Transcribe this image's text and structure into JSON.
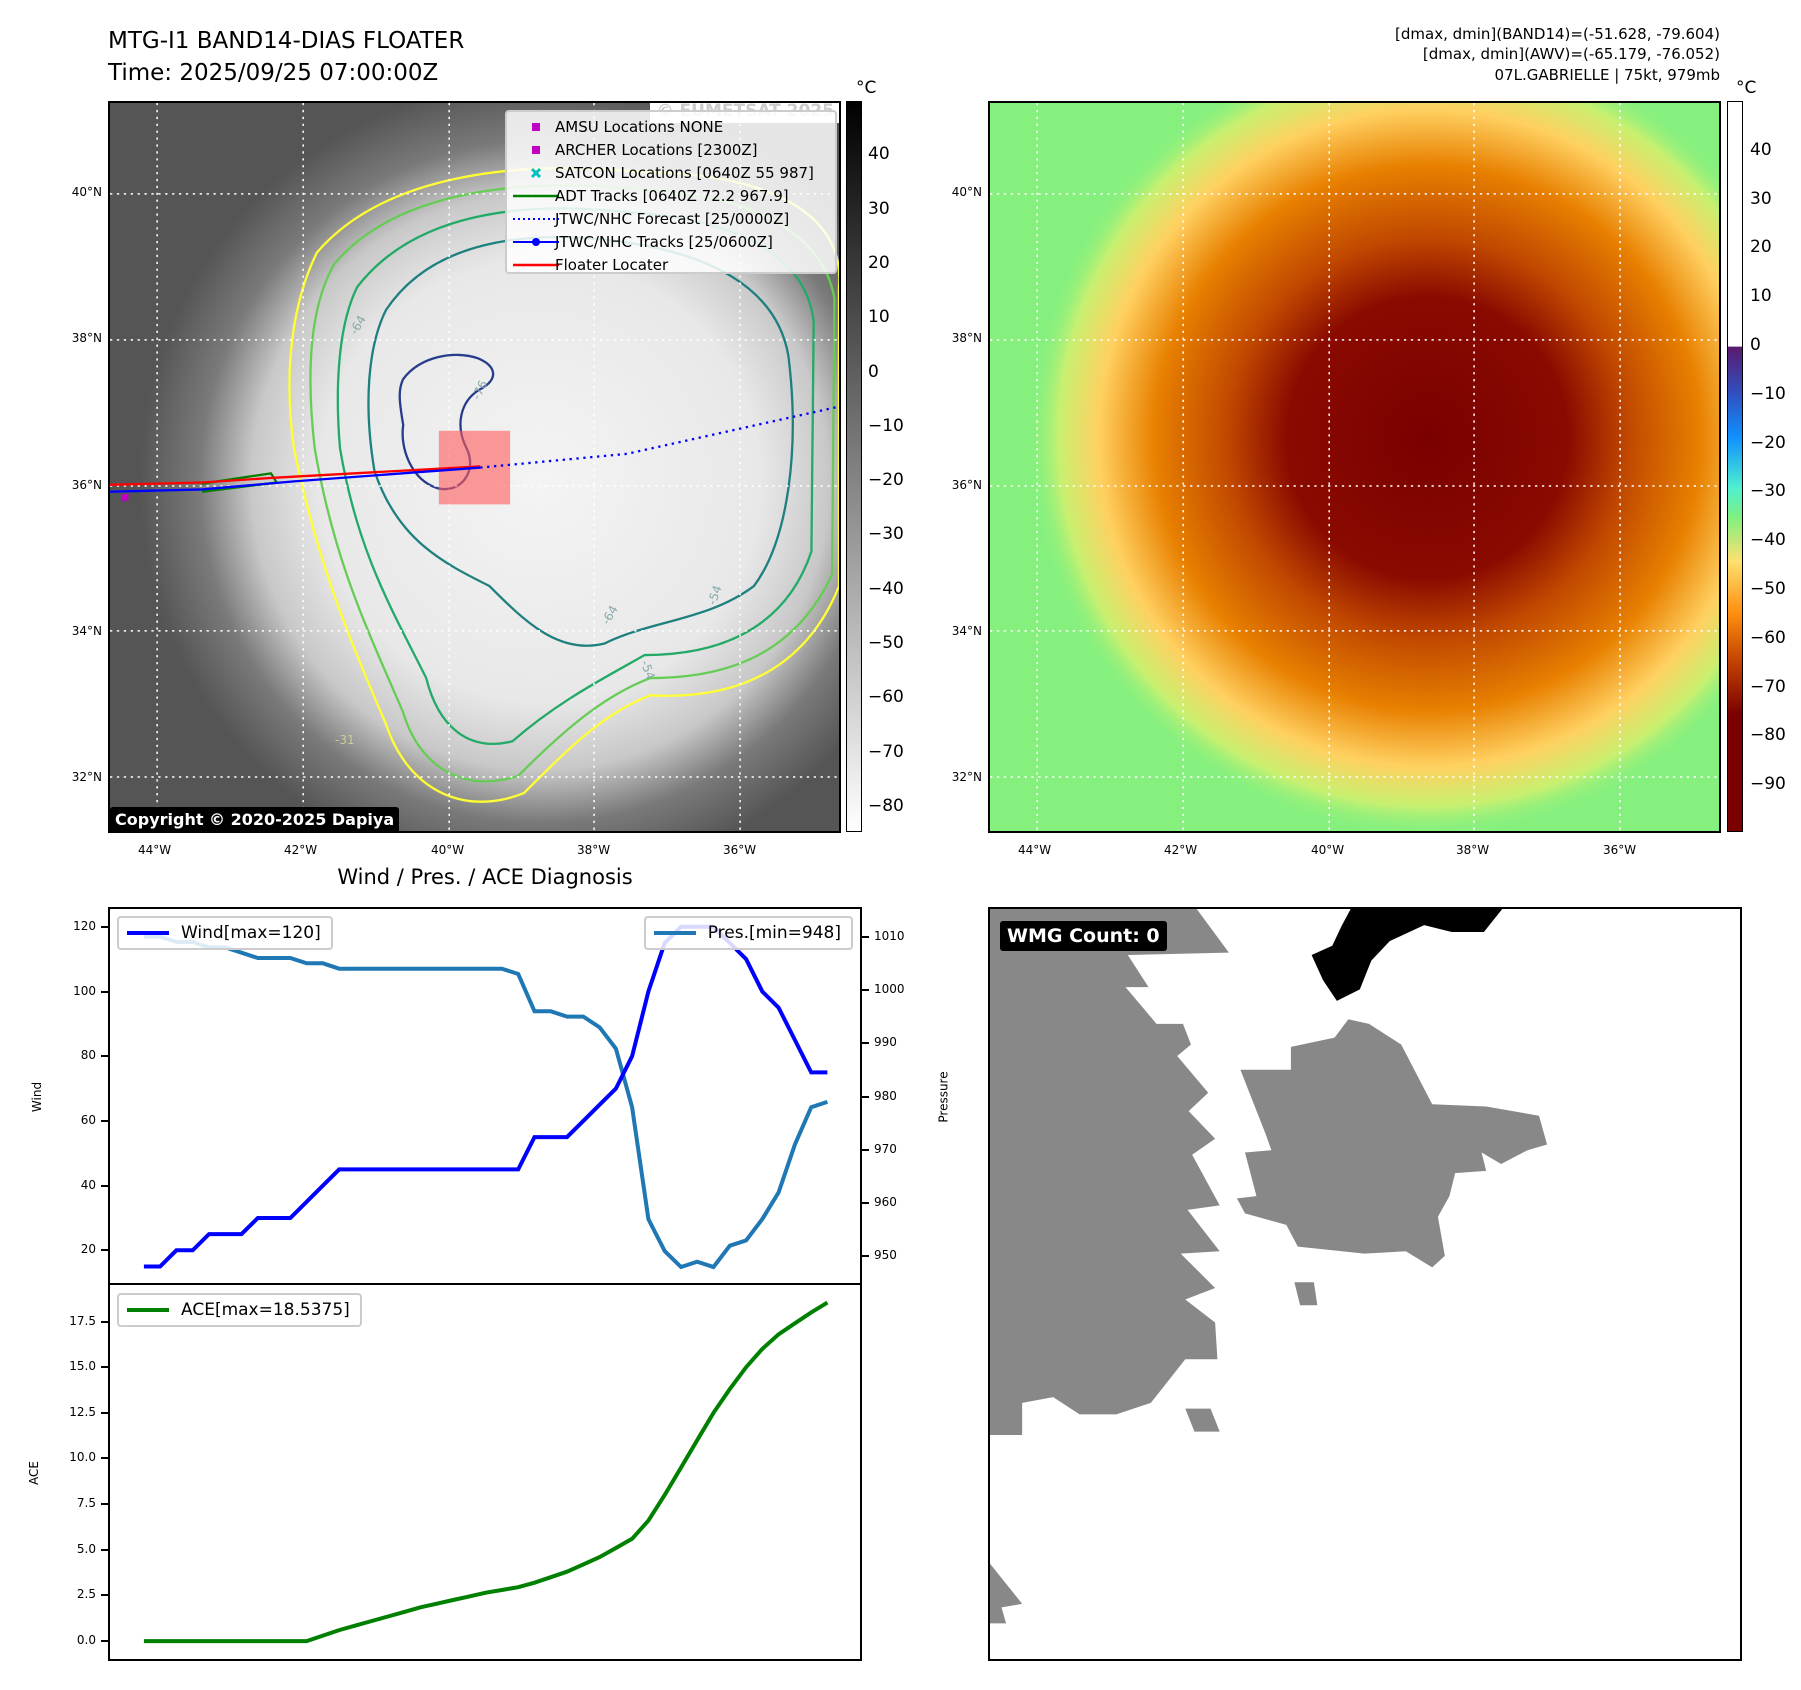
{
  "header": {
    "title": "MTG-I1 BAND14-DIAS FLOATER",
    "time": "Time: 2025/09/25 07:00:00Z",
    "stats": [
      "[dmax, dmin](BAND14)=(-51.628, -79.604)",
      "[dmax, dmin](AWV)=(-65.179, -76.052)",
      "07L.GABRIELLE | 75kt, 979mb"
    ]
  },
  "maps": {
    "lat_labels": [
      "40°N",
      "38°N",
      "36°N",
      "34°N",
      "32°N"
    ],
    "lon_labels": [
      "44°W",
      "42°W",
      "40°W",
      "38°W",
      "36°W"
    ],
    "contour_labels": [
      "-64",
      "-76",
      "-54",
      "-64",
      "-31",
      "-54"
    ],
    "watermark": "© EUMETSAT 2025",
    "copyright": "Copyright © 2020-2025 Dapiya",
    "legend": [
      {
        "label": "AMSU Locations NONE",
        "marker": "square",
        "color": "#c000c0"
      },
      {
        "label": "ARCHER Locations [2300Z]",
        "marker": "square",
        "color": "#c000c0"
      },
      {
        "label": "SATCON Locations [0640Z 55 987]",
        "marker": "x",
        "color": "#00c0c0"
      },
      {
        "label": "ADT Tracks [0640Z 72.2 967.9]",
        "marker": "line",
        "color": "#008000"
      },
      {
        "label": "JTWC/NHC Forecast [25/0000Z]",
        "marker": "dotted",
        "color": "#0000ff"
      },
      {
        "label": "JTWC/NHC Tracks [25/0600Z]",
        "marker": "line-dot",
        "color": "#0000ff"
      },
      {
        "label": "Floater Locater",
        "marker": "line",
        "color": "#ff0000"
      }
    ],
    "colorbar_left": {
      "unit": "°C",
      "ticks": [
        "40",
        "30",
        "20",
        "10",
        "0",
        "−10",
        "−20",
        "−30",
        "−40",
        "−50",
        "−60",
        "−70",
        "−80"
      ],
      "values": [
        40,
        30,
        20,
        10,
        0,
        -10,
        -20,
        -30,
        -40,
        -50,
        -60,
        -70,
        -80
      ],
      "range": [
        -84.6,
        50
      ]
    },
    "colorbar_right": {
      "unit": "°C",
      "ticks": [
        "40",
        "30",
        "20",
        "10",
        "0",
        "−10",
        "−20",
        "−30",
        "−40",
        "−50",
        "−60",
        "−70",
        "−80",
        "−90"
      ],
      "values": [
        40,
        30,
        20,
        10,
        0,
        -10,
        -20,
        -30,
        -40,
        -50,
        -60,
        -70,
        -80,
        -90
      ],
      "range": [
        -99.6,
        50.2
      ]
    }
  },
  "chart_data": [
    {
      "type": "line",
      "title": "Wind / Pres. / ACE Diagnosis",
      "xlabel": "",
      "ylabel": "Wind",
      "y2label": "Pressure",
      "x": [
        0,
        1,
        2,
        3,
        4,
        5,
        6,
        7,
        8,
        9,
        10,
        11,
        12,
        13,
        14,
        15,
        16,
        17,
        18,
        19,
        20,
        21,
        22,
        23,
        24,
        25,
        26,
        27,
        28,
        29,
        30,
        31,
        32,
        33,
        34,
        35,
        36,
        37,
        38,
        39,
        40,
        41,
        42
      ],
      "xlim": [
        -2.08,
        44.0
      ],
      "ylim": [
        9.9,
        125.5
      ],
      "y2lim": [
        945.0,
        1015.2
      ],
      "yticks": [
        20,
        40,
        60,
        80,
        100,
        120
      ],
      "y2ticks": [
        950,
        960,
        970,
        980,
        990,
        1000,
        1010
      ],
      "legend_placement": [
        "upper-left",
        "upper-right"
      ],
      "series": [
        {
          "name": "Wind[max=120]",
          "axis": "left",
          "color": "#0000ff",
          "values": [
            15,
            15,
            20,
            20,
            25,
            25,
            25,
            30,
            30,
            30,
            35,
            40,
            45,
            45,
            45,
            45,
            45,
            45,
            45,
            45,
            45,
            45,
            45,
            45,
            55,
            55,
            55,
            60,
            65,
            70,
            80,
            100,
            115,
            120,
            120,
            120,
            115,
            110,
            100,
            95,
            85,
            75,
            75
          ]
        },
        {
          "name": "Pres.[min=948]",
          "axis": "right",
          "color": "#1f77b4",
          "values": [
            1010,
            1010,
            1009,
            1009,
            1008,
            1008,
            1007,
            1006,
            1006,
            1006,
            1005,
            1005,
            1004,
            1004,
            1004,
            1004,
            1004,
            1004,
            1004,
            1004,
            1004,
            1004,
            1004,
            1003,
            996,
            996,
            995,
            995,
            993,
            989,
            978,
            957,
            951,
            948,
            949,
            948,
            952,
            953,
            957,
            962,
            971,
            978,
            979
          ]
        }
      ]
    },
    {
      "type": "line",
      "ylabel": "ACE",
      "x": [
        0,
        1,
        2,
        3,
        4,
        5,
        6,
        7,
        8,
        9,
        10,
        11,
        12,
        13,
        14,
        15,
        16,
        17,
        18,
        19,
        20,
        21,
        22,
        23,
        24,
        25,
        26,
        27,
        28,
        29,
        30,
        31,
        32,
        33,
        34,
        35,
        36,
        37,
        38,
        39,
        40,
        41,
        42
      ],
      "xlim": [
        -2.08,
        44.0
      ],
      "ylim": [
        -0.98,
        19.5
      ],
      "yticks": [
        0.0,
        2.5,
        5.0,
        7.5,
        10.0,
        12.5,
        15.0,
        17.5
      ],
      "ytick_labels": [
        "0.0",
        "2.5",
        "5.0",
        "7.5",
        "10.0",
        "12.5",
        "15.0",
        "17.5"
      ],
      "legend_placement": "upper-left",
      "series": [
        {
          "name": "ACE[max=18.5375]",
          "color": "#008000",
          "values": [
            0,
            0,
            0,
            0,
            0,
            0,
            0,
            0,
            0,
            0,
            0,
            0.3,
            0.6,
            0.85,
            1.1,
            1.35,
            1.6,
            1.85,
            2.05,
            2.25,
            2.45,
            2.65,
            2.8,
            2.95,
            3.2,
            3.5,
            3.8,
            4.2,
            4.6,
            5.1,
            5.6,
            6.6,
            8.0,
            9.5,
            11.0,
            12.5,
            13.8,
            15.0,
            16.0,
            16.8,
            17.4,
            18.0,
            18.5375
          ]
        }
      ]
    }
  ],
  "wmg": {
    "label": "WMG Count: 0"
  }
}
